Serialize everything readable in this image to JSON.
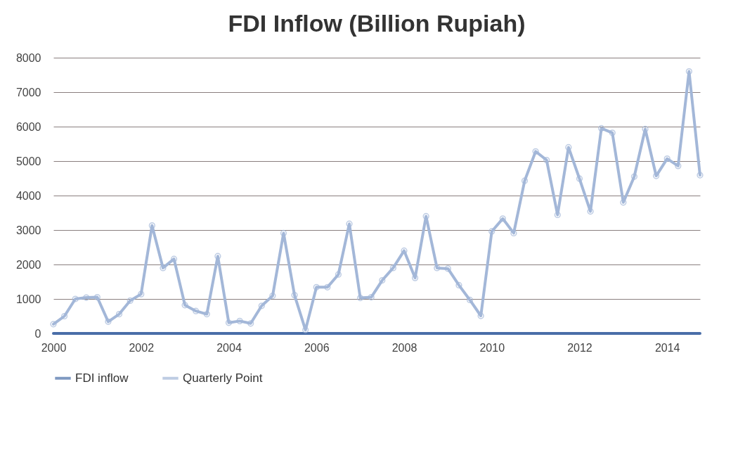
{
  "chart_data": {
    "type": "line",
    "title": "FDI Inflow (Billion Rupiah)",
    "x": [
      2000,
      2000.25,
      2000.5,
      2000.75,
      2001,
      2001.25,
      2001.5,
      2001.75,
      2002,
      2002.25,
      2002.5,
      2002.75,
      2003,
      2003.25,
      2003.5,
      2003.75,
      2004,
      2004.25,
      2004.5,
      2004.75,
      2005,
      2005.25,
      2005.5,
      2005.75,
      2006,
      2006.25,
      2006.5,
      2006.75,
      2007,
      2007.25,
      2007.5,
      2007.75,
      2008,
      2008.25,
      2008.5,
      2008.75,
      2009,
      2009.25,
      2009.5,
      2009.75,
      2010,
      2010.25,
      2010.5,
      2010.75,
      2011,
      2011.25,
      2011.5,
      2011.75,
      2012,
      2012.25,
      2012.5,
      2012.75,
      2013,
      2013.25,
      2013.5,
      2013.75,
      2014,
      2014.25,
      2014.5,
      2014.75
    ],
    "series": [
      {
        "name": "FDI inflow",
        "color": "#4a6ea8",
        "marker": "none",
        "values": [
          0,
          0,
          0,
          0,
          0,
          0,
          0,
          0,
          0,
          0,
          0,
          0,
          0,
          0,
          0,
          0,
          0,
          0,
          0,
          0,
          0,
          0,
          0,
          0,
          0,
          0,
          0,
          0,
          0,
          0,
          0,
          0,
          0,
          0,
          0,
          0,
          0,
          0,
          0,
          0,
          0,
          0,
          0,
          0,
          0,
          0,
          0,
          0,
          0,
          0,
          0,
          0,
          0,
          0,
          0,
          0,
          0,
          0,
          0,
          0
        ]
      },
      {
        "name": "Quarterly Point",
        "color": "#a3b7d8",
        "marker": "circle",
        "values": [
          270,
          500,
          1000,
          1040,
          1050,
          340,
          560,
          950,
          1140,
          3130,
          1900,
          2160,
          820,
          650,
          560,
          2240,
          310,
          360,
          290,
          800,
          1090,
          2910,
          1110,
          100,
          1340,
          1340,
          1710,
          3180,
          1030,
          1050,
          1540,
          1900,
          2400,
          1610,
          3400,
          1900,
          1880,
          1400,
          970,
          510,
          2960,
          3330,
          2910,
          4430,
          5280,
          5030,
          3440,
          5400,
          4490,
          3540,
          5950,
          5820,
          3800,
          4550,
          5930,
          4570,
          5070,
          4860,
          7600,
          4590
        ]
      }
    ],
    "xlim": [
      2000,
      2014.75
    ],
    "xticks": [
      2000,
      2002,
      2004,
      2006,
      2008,
      2010,
      2012,
      2014
    ],
    "ylim": [
      0,
      8000
    ],
    "yticks": [
      0,
      1000,
      2000,
      3000,
      4000,
      5000,
      6000,
      7000,
      8000
    ],
    "grid": "y",
    "legend": "bottom"
  }
}
